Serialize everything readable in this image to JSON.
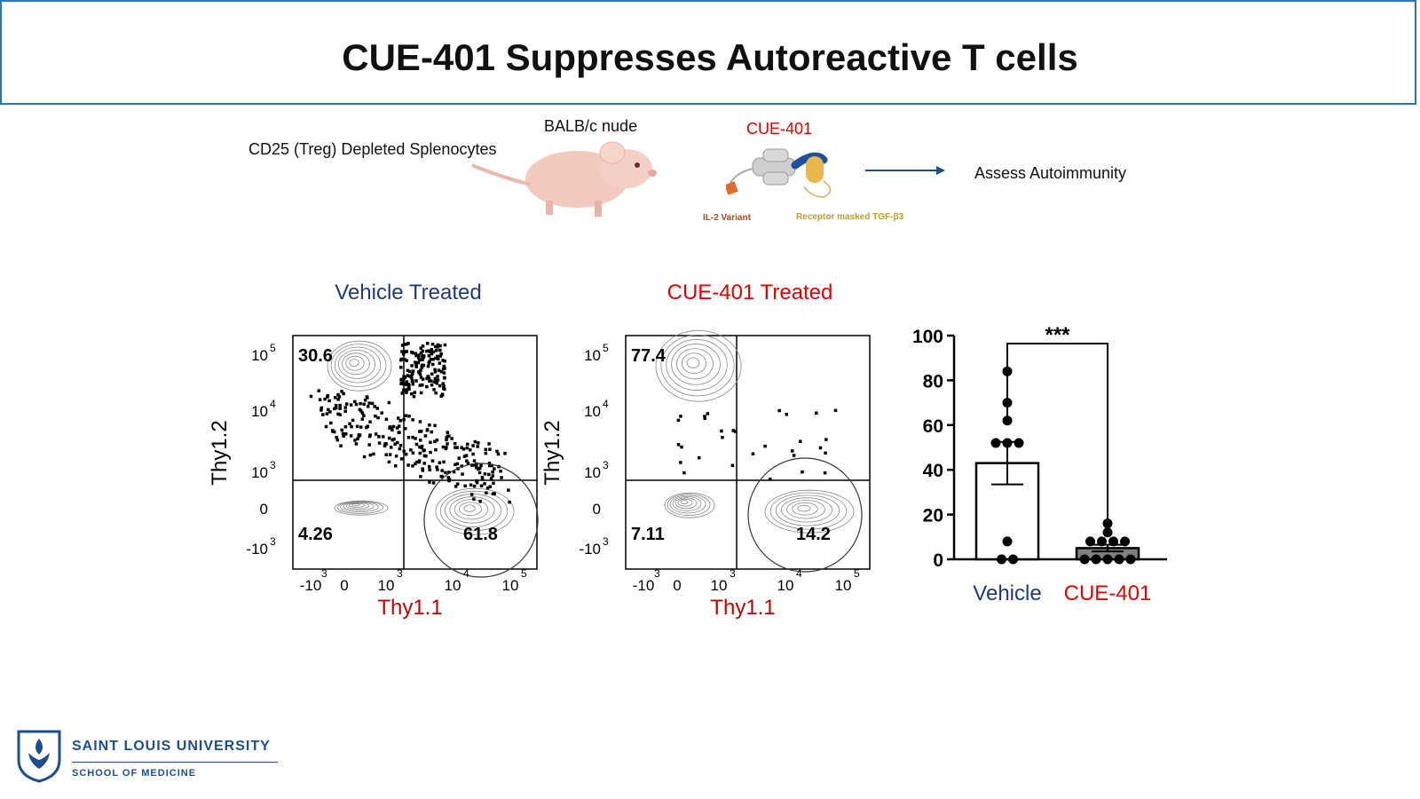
{
  "slide": {
    "title": "CUE-401 Suppresses Autoreactive T cells"
  },
  "schematic": {
    "donor_label": "CD25 (Treg) Depleted Splenocytes",
    "host_label": "BALB/c nude",
    "drug_label": "CUE-401",
    "il2_label": "IL-2 Variant",
    "tgf_label": "Receptor masked TGF-β3",
    "outcome_label": "Assess Autoimmunity",
    "colors": {
      "drug": "#e00000",
      "il2": "#c0441c",
      "tgf": "#b8a030",
      "arrow": "#1f4e79",
      "mask": "#1f4fa0",
      "tgf_body": "#e8b84a"
    }
  },
  "flow_plots": [
    {
      "heading": "Vehicle Treated",
      "heading_color": "#1f3a7a",
      "xlabel": "Thy1.1",
      "ylabel": "Thy1.2",
      "x_ticks": [
        "-10",
        "0",
        "10",
        "10",
        "10"
      ],
      "x_tick_exps": [
        "3",
        "",
        "3",
        "4",
        "5"
      ],
      "y_ticks": [
        "10",
        "10",
        "10",
        "0",
        "-10"
      ],
      "y_tick_exps": [
        "5",
        "4",
        "3",
        "",
        "3"
      ],
      "quadrants": {
        "upper_left": "30.6",
        "lower_left": "4.26",
        "lower_right_gate": "61.8"
      }
    },
    {
      "heading": "CUE-401 Treated",
      "heading_color": "#e00000",
      "xlabel": "Thy1.1",
      "ylabel": "Thy1.2",
      "x_ticks": [
        "-10",
        "0",
        "10",
        "10",
        "10"
      ],
      "x_tick_exps": [
        "3",
        "",
        "3",
        "4",
        "5"
      ],
      "y_ticks": [
        "10",
        "10",
        "10",
        "0",
        "-10"
      ],
      "y_tick_exps": [
        "5",
        "4",
        "3",
        "",
        "3"
      ],
      "quadrants": {
        "upper_left": "77.4",
        "lower_left": "7.11",
        "lower_right_gate": "14.2"
      }
    }
  ],
  "chart_data": {
    "type": "bar",
    "categories": [
      "Vehicle",
      "CUE-401"
    ],
    "category_colors": [
      "#1f3a7a",
      "#e00000"
    ],
    "values": [
      43,
      5
    ],
    "errors": [
      9.5,
      1.5
    ],
    "bar_fills": [
      "#ffffff",
      "#808080"
    ],
    "points": [
      [
        84,
        70,
        62,
        52,
        52,
        52,
        8,
        0,
        0
      ],
      [
        16,
        12,
        8,
        8,
        8,
        8,
        0,
        0,
        0,
        0,
        0
      ]
    ],
    "significance": "***",
    "ylim": [
      0,
      100
    ],
    "yticks": [
      0,
      20,
      40,
      60,
      80,
      100
    ],
    "title": "",
    "xlabel": "",
    "ylabel": ""
  },
  "institution": {
    "name": "SAINT LOUIS UNIVERSITY",
    "school": "SCHOOL OF MEDICINE",
    "color": "#1f4e8c"
  }
}
